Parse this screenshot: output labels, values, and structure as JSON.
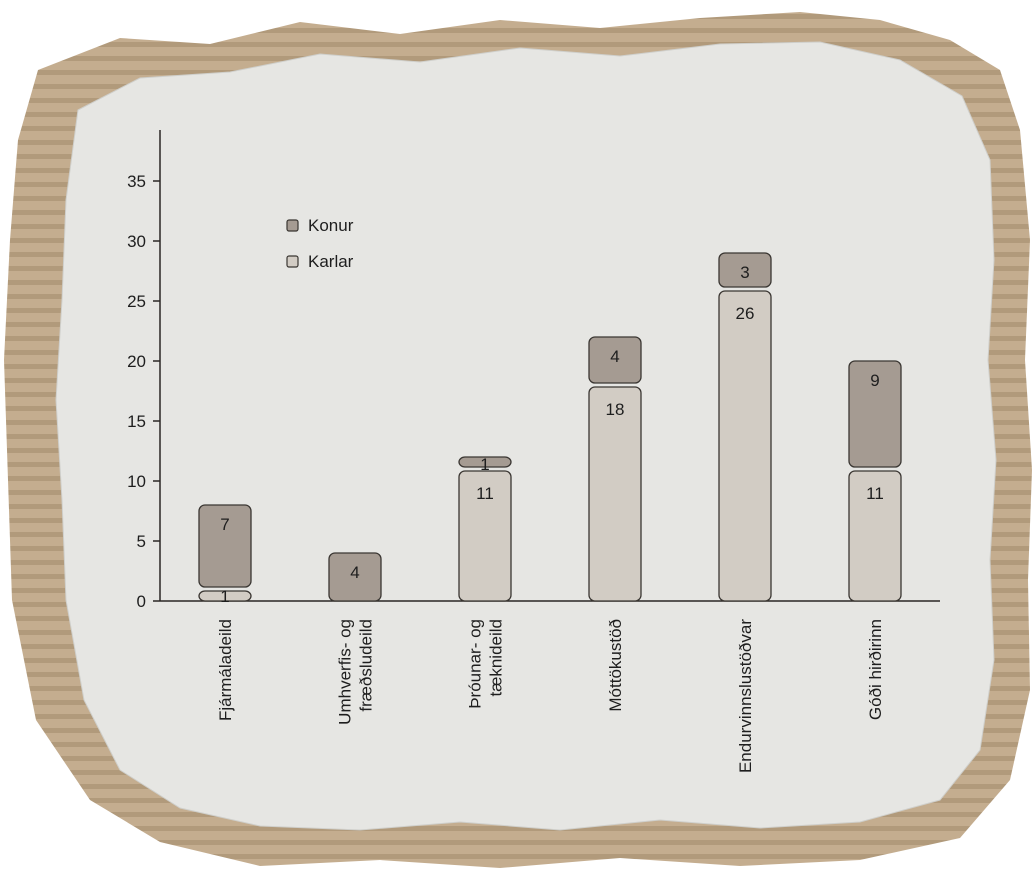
{
  "colors": {
    "konur": "#a59b92",
    "karlar": "#d2ccc4",
    "bar_stroke": "#3a3632",
    "axis": "#2a2724",
    "paper": "#e6e6e3",
    "cardboard": "#c4ad8f",
    "cardboard_dark": "#a28a6c",
    "background": "#ffffff"
  },
  "chart_data": {
    "type": "bar",
    "stacked": true,
    "title": "",
    "xlabel": "",
    "ylabel": "",
    "ylim": [
      0,
      38
    ],
    "yticks": [
      0,
      5,
      10,
      15,
      20,
      25,
      30,
      35
    ],
    "categories": [
      [
        "Fjármáladeild"
      ],
      [
        "Umhverfis- og",
        "fræðsludeild"
      ],
      [
        "Þróunar- og",
        "tæknideild"
      ],
      [
        "Móttökustöð"
      ],
      [
        "Endurvinnslustöðvar"
      ],
      [
        "Góði hirðirinn"
      ]
    ],
    "series": [
      {
        "name": "Karlar",
        "values": [
          1,
          0,
          11,
          18,
          26,
          11
        ]
      },
      {
        "name": "Konur",
        "values": [
          7,
          4,
          1,
          4,
          3,
          9
        ]
      }
    ],
    "legend": {
      "position": "top-left",
      "entries": [
        "Konur",
        "Karlar"
      ]
    },
    "grid": false
  }
}
